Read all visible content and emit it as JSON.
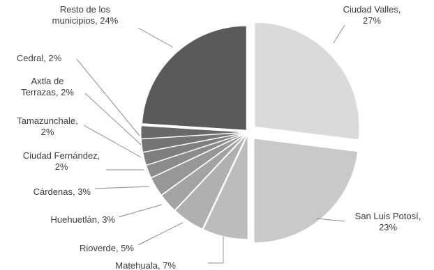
{
  "chart_data": {
    "type": "pie",
    "title": "",
    "slices": [
      {
        "label_lines": [
          "Ciudad Valles,",
          "27%"
        ],
        "category": "Ciudad Valles",
        "value": 27,
        "color": "#dadada"
      },
      {
        "label_lines": [
          "San Luis Potosí,",
          "23%"
        ],
        "category": "San Luis Potosí",
        "value": 23,
        "color": "#c9c9c9"
      },
      {
        "label_lines": [
          "Matehuala, 7%"
        ],
        "category": "Matehuala",
        "value": 7,
        "color": "#bcbcbc"
      },
      {
        "label_lines": [
          "Rioverde, 5%"
        ],
        "category": "Rioverde",
        "value": 5,
        "color": "#b0b0b0"
      },
      {
        "label_lines": [
          "Huehuetlán, 3%"
        ],
        "category": "Huehuetlán",
        "value": 3,
        "color": "#a3a3a3"
      },
      {
        "label_lines": [
          "Cárdenas, 3%"
        ],
        "category": "Cárdenas",
        "value": 3,
        "color": "#979797"
      },
      {
        "label_lines": [
          "Ciudad Fernández,",
          "2%"
        ],
        "category": "Ciudad Fernández",
        "value": 2,
        "color": "#8b8b8b"
      },
      {
        "label_lines": [
          "Tamazunchale,",
          "2%"
        ],
        "category": "Tamazunchale",
        "value": 2,
        "color": "#7f7f7f"
      },
      {
        "label_lines": [
          "Axtla de",
          "Terrazas, 2%"
        ],
        "category": "Axtla de Terrazas",
        "value": 2,
        "color": "#747474"
      },
      {
        "label_lines": [
          "Cedral, 2%"
        ],
        "category": "Cedral",
        "value": 2,
        "color": "#686868"
      },
      {
        "label_lines": [
          "Resto de los",
          "municipios, 24%"
        ],
        "category": "Resto de los municipios",
        "value": 24,
        "color": "#5a5a5a"
      }
    ]
  }
}
